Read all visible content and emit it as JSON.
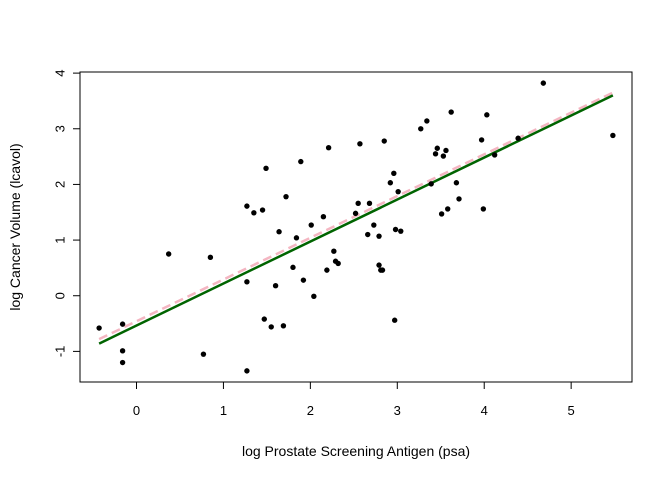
{
  "chart_data": {
    "type": "scatter",
    "title": "",
    "xlabel": "log Prostate Screening Antigen (psa)",
    "ylabel": "log Cancer Volume (lcavol)",
    "xlim": [
      -0.65,
      5.7
    ],
    "ylim": [
      -1.55,
      4.02
    ],
    "x_ticks": [
      0,
      1,
      2,
      3,
      4,
      5
    ],
    "y_ticks": [
      -1,
      0,
      1,
      2,
      3,
      4
    ],
    "grid": false,
    "legend": "none",
    "series": [
      {
        "kind": "points",
        "color": "#000000",
        "points": [
          [
            -0.43,
            -0.58
          ],
          [
            -0.16,
            -0.51
          ],
          [
            -0.16,
            -0.99
          ],
          [
            -0.16,
            -1.2
          ],
          [
            0.37,
            0.75
          ],
          [
            0.77,
            -1.05
          ],
          [
            0.85,
            0.69
          ],
          [
            1.27,
            1.61
          ],
          [
            1.27,
            0.25
          ],
          [
            1.27,
            -1.35
          ],
          [
            1.35,
            1.49
          ],
          [
            1.45,
            1.54
          ],
          [
            1.47,
            -0.42
          ],
          [
            1.49,
            2.29
          ],
          [
            1.55,
            -0.56
          ],
          [
            1.6,
            0.18
          ],
          [
            1.64,
            1.15
          ],
          [
            1.69,
            -0.54
          ],
          [
            1.72,
            1.78
          ],
          [
            1.8,
            0.51
          ],
          [
            1.84,
            1.04
          ],
          [
            1.89,
            2.41
          ],
          [
            1.92,
            0.28
          ],
          [
            2.01,
            1.27
          ],
          [
            2.04,
            -0.01
          ],
          [
            2.15,
            1.42
          ],
          [
            2.19,
            0.46
          ],
          [
            2.21,
            2.66
          ],
          [
            2.27,
            0.8
          ],
          [
            2.29,
            0.62
          ],
          [
            2.32,
            0.58
          ],
          [
            2.52,
            1.48
          ],
          [
            2.55,
            1.66
          ],
          [
            2.57,
            2.73
          ],
          [
            2.66,
            1.1
          ],
          [
            2.68,
            1.66
          ],
          [
            2.73,
            1.27
          ],
          [
            2.79,
            1.07
          ],
          [
            2.79,
            0.55
          ],
          [
            2.81,
            0.46
          ],
          [
            2.83,
            0.46
          ],
          [
            2.85,
            2.78
          ],
          [
            2.92,
            2.03
          ],
          [
            2.96,
            2.2
          ],
          [
            2.97,
            -0.44
          ],
          [
            2.98,
            1.19
          ],
          [
            3.01,
            1.87
          ],
          [
            3.04,
            1.16
          ],
          [
            3.27,
            3.0
          ],
          [
            3.34,
            3.14
          ],
          [
            3.39,
            2.01
          ],
          [
            3.44,
            2.55
          ],
          [
            3.46,
            2.65
          ],
          [
            3.51,
            1.47
          ],
          [
            3.53,
            2.51
          ],
          [
            3.56,
            2.61
          ],
          [
            3.58,
            1.56
          ],
          [
            3.62,
            3.3
          ],
          [
            3.68,
            2.03
          ],
          [
            3.71,
            1.74
          ],
          [
            3.97,
            2.8
          ],
          [
            3.99,
            1.56
          ],
          [
            4.03,
            3.25
          ],
          [
            4.12,
            2.53
          ],
          [
            4.39,
            2.83
          ],
          [
            4.68,
            3.82
          ],
          [
            5.48,
            2.88
          ]
        ]
      },
      {
        "kind": "line",
        "style": "dashed",
        "color": "#f4b6c2",
        "points": [
          [
            -0.43,
            -0.78
          ],
          [
            5.48,
            3.65
          ]
        ]
      },
      {
        "kind": "line",
        "style": "solid",
        "color": "#006400",
        "points": [
          [
            -0.43,
            -0.86
          ],
          [
            5.48,
            3.6
          ]
        ]
      }
    ]
  }
}
